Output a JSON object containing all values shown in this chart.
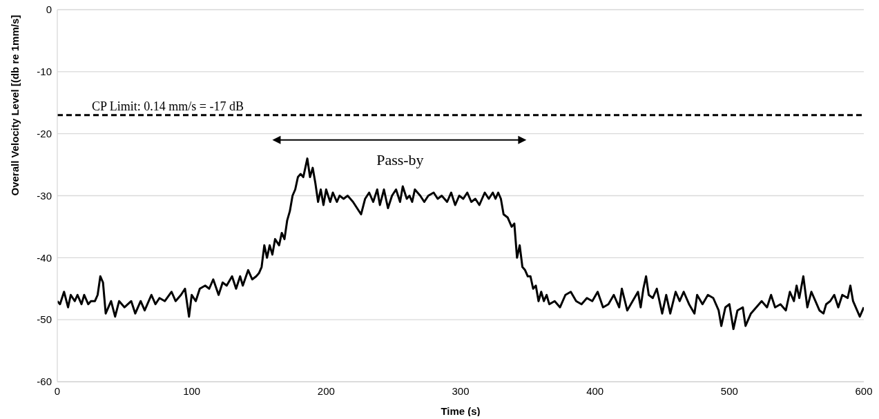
{
  "chart_data": {
    "type": "line",
    "xlabel": "Time (s)",
    "ylabel": "Overall Velocity Level [(db re 1mm/s]",
    "xlim": [
      0,
      600
    ],
    "xticks": [
      0,
      100,
      200,
      300,
      400,
      500,
      600
    ],
    "ylim": [
      -60,
      0
    ],
    "yticks": [
      -60,
      -50,
      -40,
      -30,
      -20,
      -10,
      0
    ],
    "grid": "y",
    "legend": false,
    "marker": "none",
    "line_style": "solid",
    "x": [
      0,
      2,
      5,
      8,
      10,
      13,
      15,
      18,
      20,
      23,
      25,
      28,
      30,
      32,
      34,
      36,
      40,
      43,
      46,
      50,
      55,
      58,
      62,
      65,
      70,
      73,
      76,
      80,
      85,
      88,
      92,
      95,
      98,
      100,
      103,
      106,
      110,
      113,
      116,
      120,
      123,
      126,
      130,
      133,
      136,
      138,
      142,
      145,
      148,
      150,
      152,
      154,
      156,
      158,
      160,
      162,
      165,
      167,
      169,
      171,
      173,
      175,
      177,
      179,
      181,
      183,
      185,
      186,
      188,
      190,
      192,
      194,
      196,
      198,
      200,
      203,
      205,
      208,
      210,
      213,
      216,
      220,
      223,
      226,
      229,
      232,
      235,
      238,
      240,
      243,
      246,
      249,
      252,
      255,
      257,
      260,
      262,
      264,
      266,
      270,
      273,
      276,
      280,
      283,
      286,
      290,
      293,
      296,
      299,
      302,
      305,
      308,
      311,
      314,
      318,
      321,
      324,
      326,
      328,
      330,
      332,
      335,
      338,
      340,
      342,
      344,
      346,
      348,
      350,
      352,
      354,
      356,
      358,
      360,
      362,
      364,
      366,
      370,
      374,
      378,
      382,
      386,
      390,
      394,
      398,
      402,
      406,
      410,
      414,
      418,
      420,
      424,
      428,
      432,
      434,
      436,
      438,
      440,
      443,
      446,
      450,
      453,
      456,
      460,
      463,
      466,
      470,
      474,
      476,
      480,
      484,
      488,
      492,
      494,
      497,
      500,
      503,
      506,
      510,
      512,
      516,
      520,
      524,
      528,
      531,
      534,
      538,
      542,
      545,
      548,
      550,
      552,
      555,
      558,
      561,
      564,
      567,
      570,
      572,
      575,
      578,
      581,
      584,
      588,
      590,
      592,
      595,
      597,
      600
    ],
    "series": [
      {
        "color": "#000000",
        "values": [
          -47,
          -47.5,
          -45.5,
          -48,
          -46,
          -47,
          -46,
          -47.5,
          -46,
          -47.5,
          -47,
          -47,
          -46,
          -43,
          -44,
          -49,
          -47,
          -49.5,
          -47,
          -48,
          -47,
          -49,
          -47,
          -48.5,
          -46,
          -47.5,
          -46.5,
          -47,
          -45.5,
          -47,
          -46,
          -45,
          -49.5,
          -46,
          -47,
          -45,
          -44.5,
          -45,
          -43.5,
          -46,
          -44,
          -44.5,
          -43,
          -45,
          -43,
          -44.5,
          -42,
          -43.5,
          -43,
          -42.5,
          -41.5,
          -38,
          -40,
          -38,
          -39.5,
          -37,
          -38,
          -36,
          -37,
          -34,
          -32.5,
          -30,
          -29,
          -27,
          -26.5,
          -27,
          -25,
          -24,
          -27,
          -25.5,
          -28,
          -31,
          -29,
          -31.5,
          -29,
          -31,
          -29.5,
          -31,
          -30,
          -30.5,
          -30,
          -31,
          -32,
          -33,
          -30.5,
          -29.5,
          -31,
          -29,
          -31.5,
          -29,
          -32,
          -30,
          -29,
          -31,
          -28.5,
          -30.5,
          -30,
          -31,
          -29,
          -30,
          -31,
          -30,
          -29.5,
          -30.5,
          -30,
          -31,
          -29.5,
          -31.5,
          -30,
          -30.5,
          -29.5,
          -31,
          -30.5,
          -31.5,
          -29.5,
          -30.5,
          -29.5,
          -30.5,
          -29.5,
          -30.5,
          -33,
          -33.5,
          -35,
          -34.5,
          -40,
          -38,
          -41.5,
          -42,
          -43,
          -43,
          -45,
          -44.5,
          -47,
          -45.5,
          -47,
          -46,
          -47.5,
          -47,
          -48,
          -46,
          -45.5,
          -47,
          -47.5,
          -46.5,
          -47,
          -45.5,
          -48,
          -47.5,
          -46,
          -48,
          -45,
          -48.5,
          -47,
          -45.5,
          -48,
          -45,
          -43,
          -46,
          -46.5,
          -45,
          -49,
          -46,
          -49,
          -45.5,
          -47,
          -45.5,
          -47.5,
          -49,
          -46,
          -47.5,
          -46,
          -46.5,
          -48.5,
          -51,
          -48,
          -47.5,
          -51.5,
          -48.5,
          -48,
          -51,
          -49,
          -48,
          -47,
          -48,
          -46,
          -48,
          -47.5,
          -48.5,
          -45.5,
          -47,
          -44.5,
          -46.5,
          -43,
          -48,
          -45.5,
          -47,
          -48.5,
          -49,
          -47.5,
          -47,
          -46,
          -48,
          -46,
          -46.5,
          -44.5,
          -47,
          -48.5,
          -49.5,
          -48
        ]
      }
    ],
    "ref_lines": [
      {
        "axis": "y",
        "value": -17,
        "label": "CP Limit: 0.14 mm/s = -17 dB",
        "color": "#000000",
        "line_style": "dashed"
      }
    ],
    "annotations": [
      "Pass-by"
    ]
  }
}
